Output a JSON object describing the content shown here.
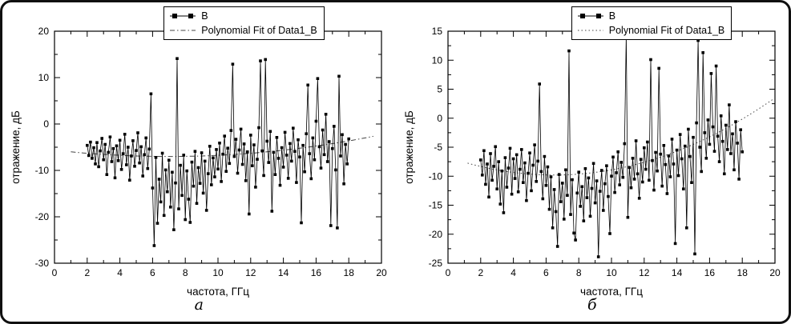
{
  "figure": {
    "panel_a_label": "а",
    "panel_b_label": "б"
  },
  "chart_data": [
    {
      "type": "line",
      "panel": "а",
      "title": "",
      "xlabel": "частота, ГГц",
      "ylabel": "отражение, дБ",
      "xlim": [
        0,
        20
      ],
      "xstep": 2,
      "xminor": 1,
      "ylim": [
        -30,
        20
      ],
      "ystep": 10,
      "yminor": 5,
      "grid": false,
      "legend_position": "top-center",
      "legend": [
        "B",
        "Polynomial Fit of Data1_B"
      ],
      "fit_style": "dash-dot",
      "x_start": 2.0,
      "x_step": 0.1,
      "values": [
        -4.6,
        -6.8,
        -3.9,
        -7.4,
        -5.1,
        -8.6,
        -4.0,
        -9.2,
        -5.8,
        -3.1,
        -7.7,
        -4.4,
        -10.9,
        -6.1,
        -2.8,
        -8.1,
        -5.3,
        -11.6,
        -4.7,
        -7.9,
        -3.5,
        -9.8,
        -6.4,
        -2.2,
        -8.8,
        -5.0,
        -12.1,
        -6.9,
        -3.6,
        -9.1,
        -5.7,
        -1.9,
        -8.4,
        -4.9,
        -11.2,
        -6.6,
        -3.0,
        -9.6,
        -5.4,
        6.5,
        -13.8,
        -26.2,
        -7.2,
        -21.4,
        -11.9,
        -16.8,
        -6.3,
        -19.7,
        -9.9,
        -14.6,
        -7.8,
        -17.9,
        -10.4,
        -22.8,
        -12.7,
        14.1,
        -18.3,
        -8.9,
        -15.4,
        -6.7,
        -20.6,
        -10.1,
        -16.2,
        -21.2,
        -8.2,
        -13.4,
        -5.9,
        -17.1,
        -9.4,
        -12.8,
        -6.2,
        -14.9,
        -8.0,
        -18.6,
        -10.7,
        -4.8,
        -13.1,
        -7.3,
        -11.4,
        -5.5,
        -9.7,
        -4.1,
        -12.4,
        -6.5,
        -2.6,
        -10.2,
        -5.2,
        -8.5,
        -1.4,
        12.9,
        -7.0,
        -3.3,
        -10.6,
        -5.6,
        -1.1,
        -8.7,
        -4.3,
        -12.2,
        -6.0,
        -19.4,
        -2.4,
        -9.0,
        -4.5,
        -13.6,
        -7.6,
        -0.8,
        13.6,
        -5.8,
        -11.1,
        13.9,
        -3.7,
        -8.3,
        -1.6,
        -18.8,
        -6.1,
        -10.9,
        -2.9,
        -7.4,
        -13.2,
        -5.1,
        -9.3,
        -1.8,
        -6.7,
        -11.7,
        -4.2,
        -8.0,
        -0.9,
        -5.9,
        -12.6,
        -3.4,
        -7.1,
        -21.3,
        -4.6,
        -10.3,
        -2.1,
        8.4,
        -6.4,
        -11.8,
        -3.0,
        -7.7,
        0.6,
        9.8,
        -4.9,
        -9.5,
        -1.3,
        -6.6,
        2.1,
        -8.1,
        -3.8,
        -21.9,
        -5.3,
        -0.5,
        -9.9,
        -22.4,
        10.3,
        -6.9,
        -2.3,
        -12.9,
        -4.4,
        -8.6,
        -3.2
      ],
      "fit": {
        "type": "quadratic",
        "vertex_x": 7.0,
        "vertex_y": -7.0,
        "k": 0.0278,
        "x_range": [
          1.0,
          19.5
        ]
      }
    },
    {
      "type": "line",
      "panel": "б",
      "title": "",
      "xlabel": "частота, ГГц",
      "ylabel": "отражение, дБ",
      "xlim": [
        0,
        20
      ],
      "xstep": 2,
      "xminor": 1,
      "ylim": [
        -25,
        15
      ],
      "ystep": 5,
      "yminor": 2.5,
      "grid": false,
      "legend_position": "top-center",
      "legend": [
        "B",
        "Polynomial Fit of Data1_B"
      ],
      "fit_style": "dot",
      "x_start": 2.0,
      "x_step": 0.1,
      "values": [
        -7.2,
        -9.8,
        -5.6,
        -11.4,
        -7.9,
        -13.6,
        -6.1,
        -10.7,
        -8.3,
        -4.9,
        -12.2,
        -7.5,
        -14.8,
        -9.1,
        -16.3,
        -6.8,
        -11.9,
        -8.6,
        -5.2,
        -13.1,
        -7.0,
        -10.4,
        -6.3,
        -12.7,
        -8.8,
        -5.4,
        -11.1,
        -7.7,
        -14.2,
        -9.5,
        -6.0,
        -12.5,
        -8.1,
        -4.6,
        -10.9,
        -7.4,
        5.9,
        -9.2,
        -13.9,
        -6.6,
        -11.6,
        -8.4,
        -15.7,
        -10.1,
        -18.9,
        -12.3,
        -16.1,
        -22.1,
        -9.7,
        -14.4,
        -11.2,
        -17.4,
        -8.9,
        -13.3,
        11.6,
        -16.6,
        -10.6,
        -19.8,
        -21.0,
        -12.9,
        -9.3,
        -15.2,
        -11.8,
        -17.7,
        -8.7,
        -13.7,
        -10.3,
        -16.9,
        -12.1,
        -7.8,
        -14.6,
        -10.8,
        -23.9,
        -12.6,
        -9.0,
        -15.9,
        -11.3,
        -8.2,
        -13.5,
        -19.9,
        -10.0,
        -6.7,
        -12.8,
        -9.4,
        -5.8,
        -11.5,
        -7.6,
        -10.2,
        -4.4,
        14.3,
        -17.1,
        -8.5,
        -12.0,
        -6.9,
        -10.5,
        -3.9,
        -9.6,
        -13.8,
        -7.1,
        -11.0,
        -5.1,
        -8.8,
        -4.1,
        -10.7,
        10.1,
        -7.3,
        -12.4,
        -5.9,
        -9.1,
        8.6,
        -6.2,
        -11.7,
        -4.7,
        -8.0,
        -13.0,
        -6.5,
        -10.1,
        -3.6,
        -7.9,
        -21.6,
        -5.5,
        -9.9,
        -2.8,
        -7.0,
        -12.2,
        -4.8,
        -18.9,
        -1.9,
        -6.6,
        -11.1,
        -3.3,
        -23.4,
        -0.8,
        13.4,
        -5.0,
        -9.2,
        11.3,
        -2.5,
        -6.9,
        -0.3,
        -4.5,
        7.7,
        -1.5,
        -5.7,
        9.0,
        -3.1,
        -7.5,
        0.4,
        -4.0,
        -9.6,
        -1.2,
        -5.4,
        2.3,
        -6.1,
        -2.7,
        -8.9,
        -0.6,
        -4.3,
        -10.5,
        -2.0,
        -5.8
      ],
      "fit": {
        "type": "quadratic",
        "vertex_x": 6.5,
        "vertex_y": -9.8,
        "k": 0.073,
        "x_range": [
          1.2,
          20.0
        ]
      }
    }
  ]
}
